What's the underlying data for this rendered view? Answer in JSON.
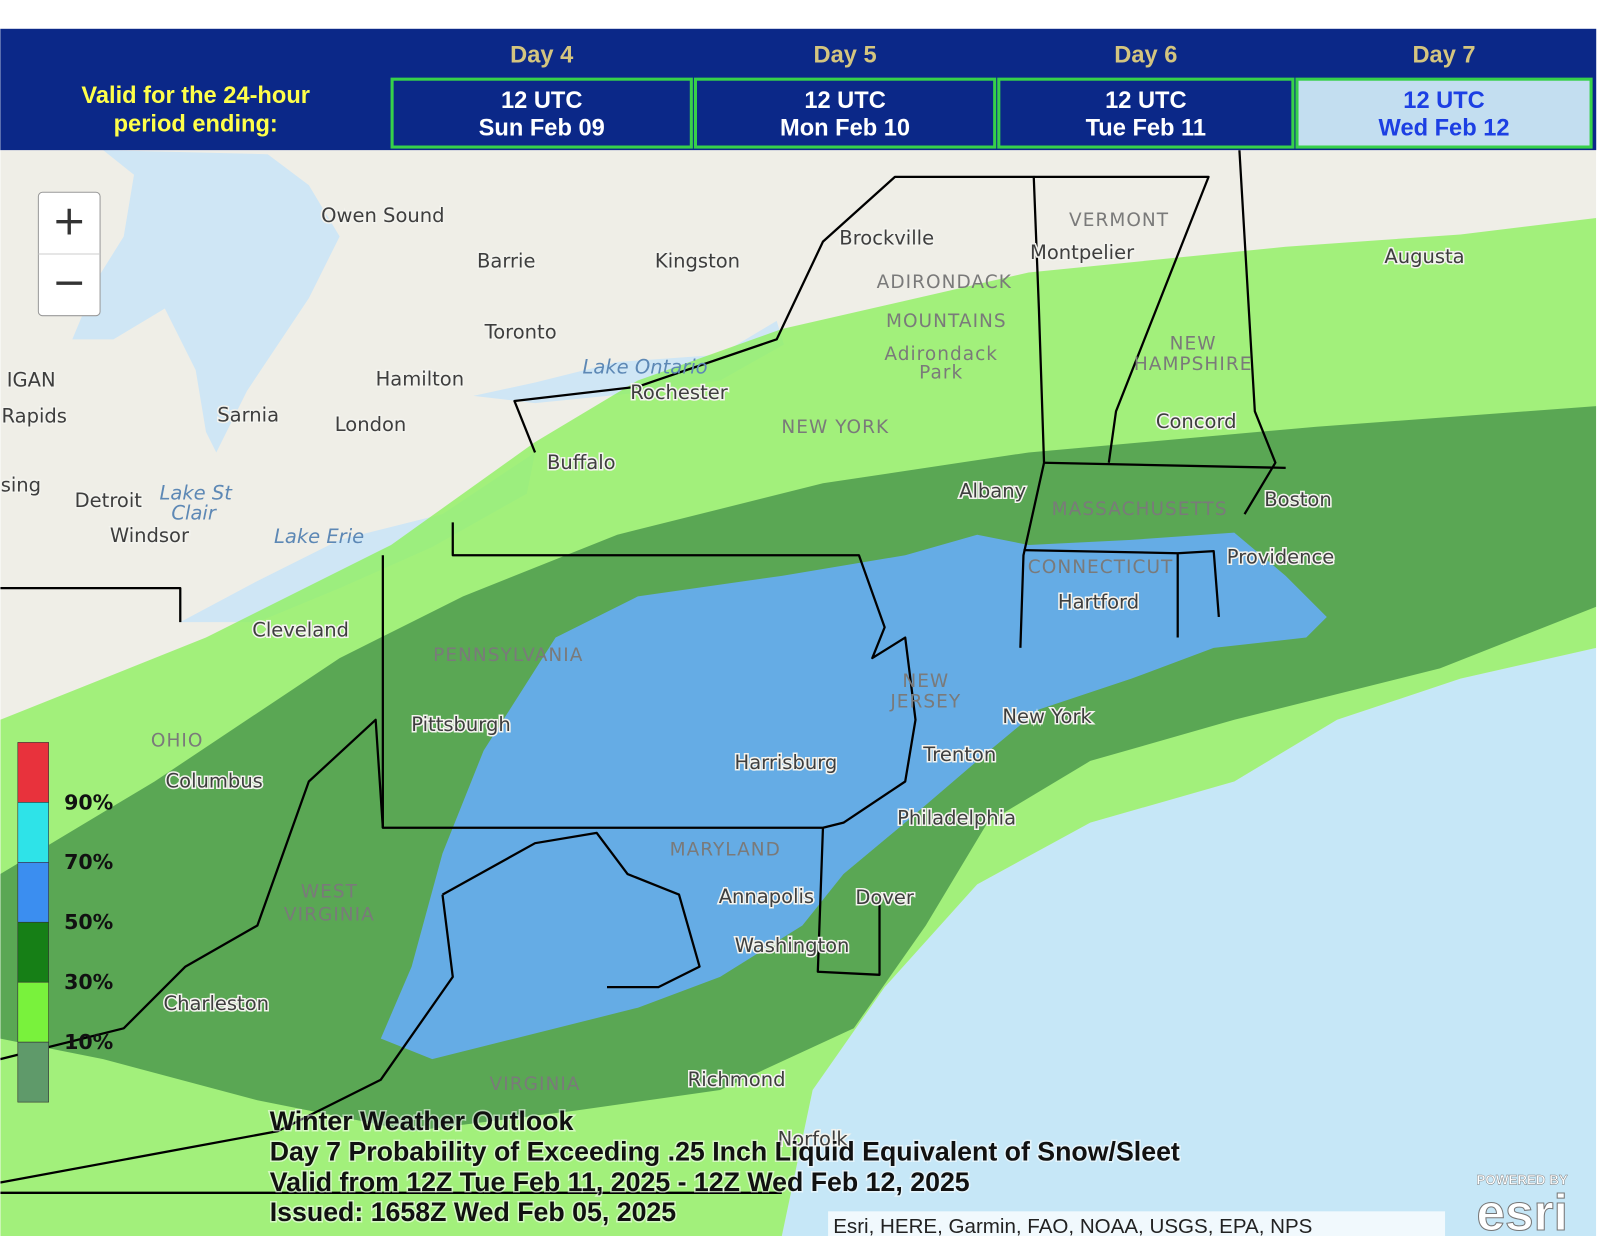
{
  "header": {
    "valid_lines": [
      "Valid for the 24-hour",
      "period ending:"
    ],
    "days": [
      {
        "day": "Day 4",
        "time": "12 UTC",
        "date": "Sun Feb 09"
      },
      {
        "day": "Day 5",
        "time": "12 UTC",
        "date": "Mon Feb 10"
      },
      {
        "day": "Day 6",
        "time": "12 UTC",
        "date": "Tue Feb 11"
      },
      {
        "day": "Day 7",
        "time": "12 UTC",
        "date": "Wed Feb 12"
      }
    ]
  },
  "zoom": {
    "in": "+",
    "out": "−"
  },
  "map": {
    "labels": [
      "Owen Sound",
      "Barrie",
      "Kingston",
      "Brockville",
      "VERMONT",
      "Montpelier",
      "Augusta",
      "ADIRONDACK",
      "MOUNTAINS",
      "Toronto",
      "Adirondack",
      "Park",
      "NEW",
      "HAMPSHIRE",
      "Concord",
      "Hamilton",
      "Lake Ontario",
      "Rochester",
      "IGAN",
      "Rapids",
      "Sarnia",
      "London",
      "NEW YORK",
      "Buffalo",
      "Albany",
      "MASSACHUSETTS",
      "Boston",
      "Detroit",
      "Lake St",
      "Clair",
      "Windsor",
      "Lake Erie",
      "sing",
      "CONNECTICUT",
      "Providence",
      "Hartford",
      "Cleveland",
      "PENNSYLVANIA",
      "NEW",
      "JERSEY",
      "New York",
      "Pittsburgh",
      "OHIO",
      "Harrisburg",
      "Trenton",
      "Columbus",
      "Philadelphia",
      "MARYLAND",
      "WEST",
      "VIRGINIA",
      "Annapolis",
      "Dover",
      "Washington",
      "Charleston",
      "VIRGINIA",
      "Richmond",
      "Norfolk"
    ]
  },
  "legend": {
    "labels": [
      "90%",
      "70%",
      "50%",
      "30%",
      "10%"
    ]
  },
  "title_lines": [
    "Winter Weather Outlook",
    "Day 7 Probability of Exceeding .25 Inch Liquid Equivalent of Snow/Sleet",
    "Valid from 12Z Tue Feb 11, 2025 - 12Z Wed Feb 12, 2025",
    "Issued: 1658Z Wed Feb 05, 2025"
  ],
  "attribution": "Esri, HERE, Garmin, FAO, NOAA, USGS, EPA, NPS",
  "logo": {
    "powered": "POWERED BY",
    "name": "esri"
  }
}
